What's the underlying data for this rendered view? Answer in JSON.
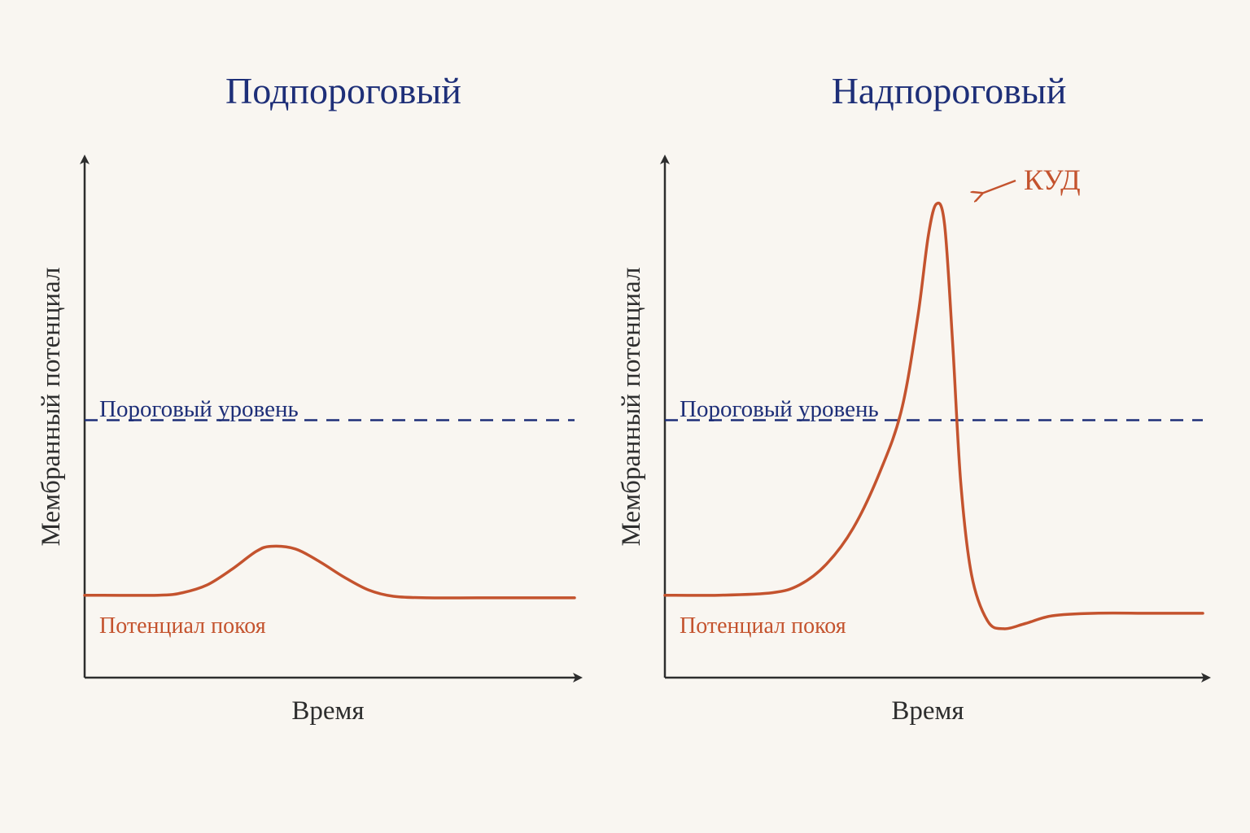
{
  "colors": {
    "background": "#f9f6f1",
    "title": "#1e2f78",
    "threshold": "#1e2f78",
    "potential": "#c4532e",
    "axis": "#2d2d2d"
  },
  "chart_data": [
    {
      "type": "line",
      "title": "Подпороговый",
      "xlabel": "Время",
      "ylabel": "Мембранный потенциал",
      "threshold_label": "Пороговый уровень",
      "rest_label": "Потенциал покоя",
      "ylim": [
        0,
        100
      ],
      "xlim": [
        0,
        100
      ],
      "threshold": 50,
      "series": [
        {
          "x": [
            0,
            15,
            20,
            25,
            30,
            35,
            38,
            43,
            48,
            53,
            58,
            63,
            70,
            80,
            90,
            100
          ],
          "y": [
            16,
            16,
            16.5,
            18,
            21,
            24.5,
            25.5,
            25,
            22.5,
            19.5,
            17,
            15.8,
            15.5,
            15.5,
            15.5,
            15.5
          ]
        }
      ]
    },
    {
      "type": "line",
      "title": "Надпороговый",
      "xlabel": "Время",
      "ylabel": "Мембранный потенциал",
      "threshold_label": "Пороговый уровень",
      "rest_label": "Потенциал покоя",
      "peak_label": "КУД",
      "ylim": [
        0,
        100
      ],
      "xlim": [
        0,
        100
      ],
      "threshold": 50,
      "series": [
        {
          "x": [
            0,
            10,
            20,
            25,
            30,
            35,
            40,
            44,
            47,
            49,
            50.5,
            52,
            53.5,
            55,
            57,
            60,
            63,
            67,
            72,
            80,
            90,
            100
          ],
          "y": [
            16,
            16,
            16.5,
            18,
            22,
            29,
            40,
            52,
            70,
            86,
            92,
            88,
            65,
            38,
            20,
            11,
            9.5,
            10.5,
            12,
            12.5,
            12.5,
            12.5
          ]
        }
      ]
    }
  ]
}
